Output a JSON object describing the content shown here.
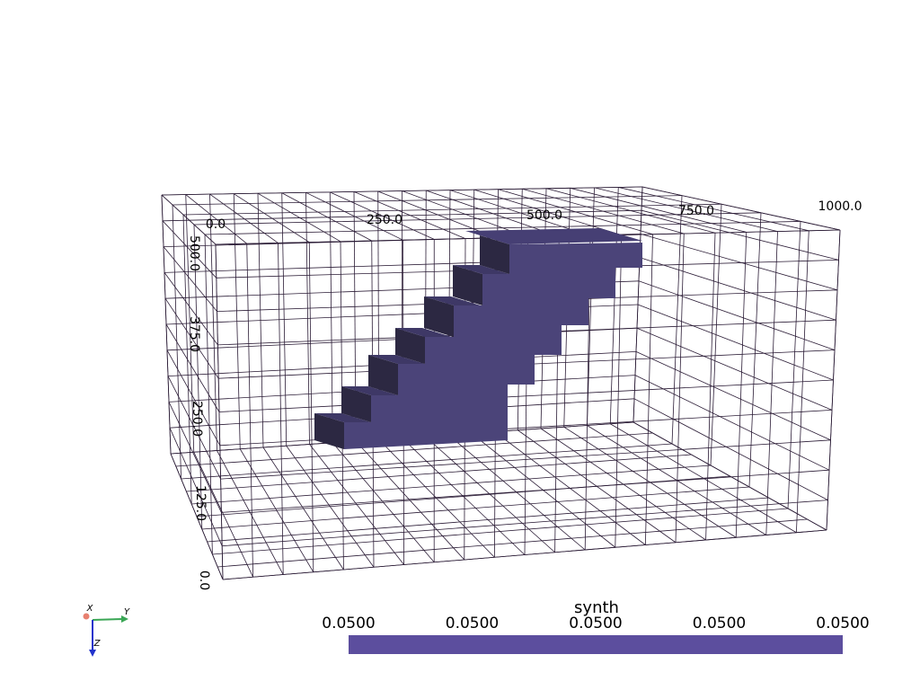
{
  "axes": {
    "x_labels": [
      "0.0",
      "250.0",
      "500.0",
      "750.0",
      "1000.0"
    ],
    "z_labels": [
      "500.0",
      "375.0",
      "250.0",
      "125.0",
      "0.0"
    ]
  },
  "scalar_bar": {
    "title": "synth",
    "labels": [
      "0.0500",
      "0.0500",
      "0.0500",
      "0.0500",
      "0.0500"
    ],
    "color": "#5c4e9e"
  },
  "orientation_widget": {
    "x": "X",
    "y": "Y",
    "z": "Z"
  }
}
